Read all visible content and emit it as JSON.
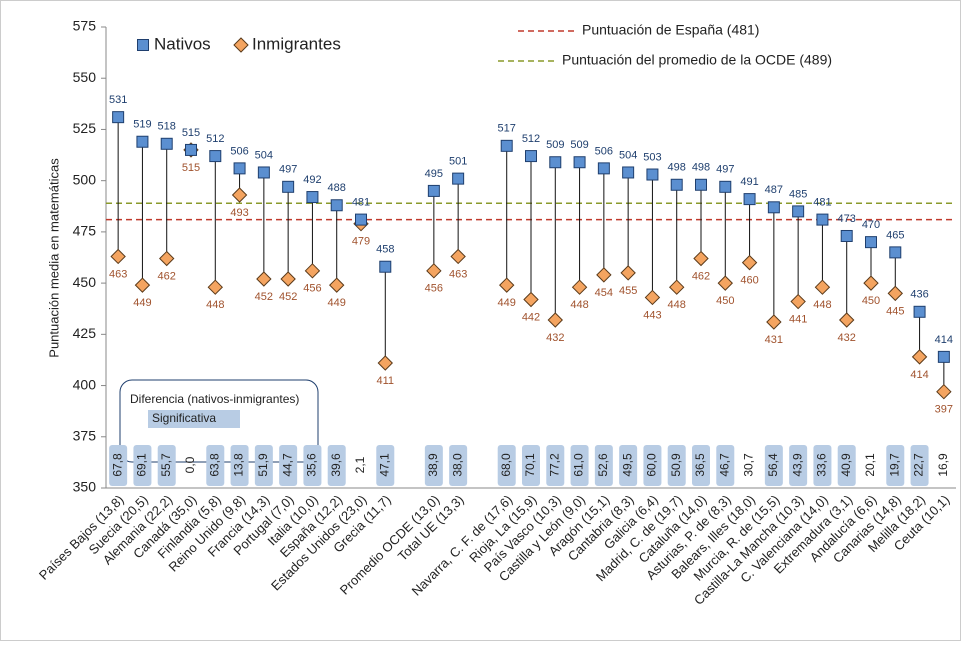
{
  "chart_data": {
    "type": "dumbbell",
    "ylabel": "Puntuación media en matemáticas",
    "ylim": [
      350,
      575
    ],
    "yticks": [
      350,
      375,
      400,
      425,
      450,
      475,
      500,
      525,
      550,
      575
    ],
    "categories": [
      "Países Bajos (13,8)",
      "Suecia (20,5)",
      "Alemania (22,2)",
      "Canadá (35,0)",
      "Finlandia (5,8)",
      "Reino Unido (9,8)",
      "Francia (14,3)",
      "Portugal (7,0)",
      "Italia (10,0)",
      "España (12,2)",
      "Estados Unidos (23,0)",
      "Grecia (11,7)",
      null,
      "Promedio OCDE (13,0)",
      "Total UE (13,3)",
      null,
      "Navarra, C. F. de (17,6)",
      "Rioja, La (15,9)",
      "País Vasco (10,3)",
      "Castilla y León (9,0)",
      "Aragón (15,1)",
      "Cantabria (8,3)",
      "Galicia (6,4)",
      "Madrid, C. de (19,7)",
      "Cataluña (14,0)",
      "Asturias, P. de (8,3)",
      "Balears, Illes (18,0)",
      "Murcia, R. de (15,5)",
      "Castilla-La Mancha (10,3)",
      "C. Valenciana (14,0)",
      "Extremadura (3,1)",
      "Andalucía (6,6)",
      "Canarias (14,8)",
      "Melilla (18,2)",
      "Ceuta (10,1)"
    ],
    "series": [
      {
        "name": "Nativos",
        "color": "#5b8fd0",
        "label_color": "#1f3f6e",
        "values": [
          531,
          519,
          518,
          515,
          512,
          506,
          504,
          497,
          492,
          488,
          481,
          458,
          null,
          495,
          501,
          null,
          517,
          512,
          509,
          509,
          506,
          504,
          503,
          498,
          498,
          497,
          491,
          487,
          485,
          481,
          473,
          470,
          465,
          436,
          414
        ]
      },
      {
        "name": "Inmigrantes",
        "color": "#f4a460",
        "label_color": "#a0522d",
        "values": [
          463,
          449,
          462,
          515,
          448,
          493,
          452,
          452,
          456,
          449,
          479,
          411,
          null,
          456,
          463,
          null,
          449,
          442,
          432,
          448,
          454,
          455,
          443,
          448,
          462,
          450,
          460,
          431,
          441,
          448,
          432,
          450,
          445,
          414,
          397
        ]
      }
    ],
    "differences": [
      "67,8",
      "69,1",
      "55,7",
      "0,0",
      "63,8",
      "13,8",
      "51,9",
      "44,7",
      "35,6",
      "39,6",
      "2,1",
      "47,1",
      null,
      "38,9",
      "38,0",
      null,
      "68,0",
      "70,1",
      "77,2",
      "61,0",
      "52,6",
      "49,5",
      "60,0",
      "50,9",
      "36,5",
      "46,7",
      "30,7",
      "56,4",
      "43,9",
      "33,6",
      "40,9",
      "20,1",
      "19,7",
      "22,7",
      "16,9"
    ],
    "significant": [
      true,
      true,
      true,
      false,
      true,
      true,
      true,
      true,
      true,
      true,
      false,
      true,
      null,
      true,
      true,
      null,
      true,
      true,
      true,
      true,
      true,
      true,
      true,
      true,
      true,
      true,
      false,
      true,
      true,
      true,
      true,
      false,
      true,
      true,
      false
    ],
    "significance_legend": {
      "title": "Diferencia (nativos-inmigrantes)",
      "label": "Significativa",
      "color": "#b8cce4"
    },
    "reference_lines": [
      {
        "name": "Puntuación de España (481)",
        "value": 481,
        "color": "#c0392b"
      },
      {
        "name": "Puntuación del promedio de la OCDE (489)",
        "value": 489,
        "color": "#8a9a2a"
      }
    ]
  }
}
